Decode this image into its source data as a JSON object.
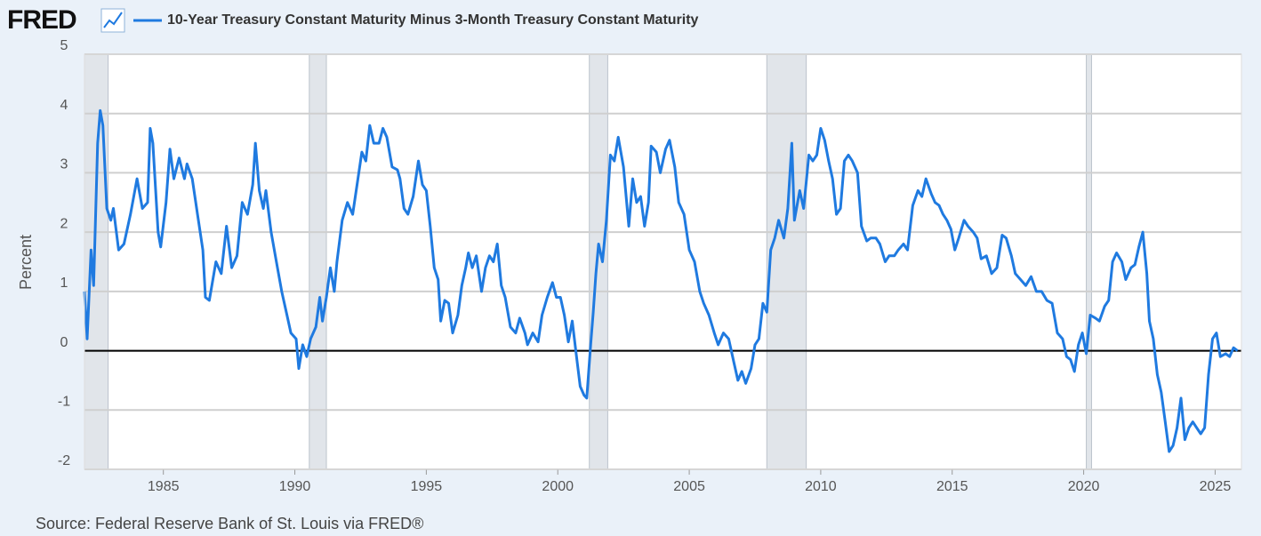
{
  "chart_data": {
    "type": "line",
    "logo": "FRED",
    "y_label": "Percent",
    "source": "Source: Federal Reserve Bank of St. Louis via FRED®",
    "xlim": [
      1982,
      2026
    ],
    "xticks": [
      1985,
      1990,
      1995,
      2000,
      2005,
      2010,
      2015,
      2020,
      2025
    ],
    "ylim": [
      -2,
      5
    ],
    "yticks": [
      -2,
      -1,
      0,
      1,
      2,
      3,
      4,
      5
    ],
    "grid": true,
    "recession_color": "#e1e5ea",
    "recessions": [
      [
        1982,
        1982.9
      ],
      [
        1990.55,
        1991.2
      ],
      [
        2001.2,
        2001.9
      ],
      [
        2007.95,
        2009.45
      ],
      [
        2020.1,
        2020.3
      ]
    ],
    "x": [
      1982.0,
      1982.1,
      1982.25,
      1982.35,
      1982.5,
      1982.6,
      1982.7,
      1982.85,
      1983.0,
      1983.1,
      1983.3,
      1983.5,
      1983.75,
      1984.0,
      1984.2,
      1984.4,
      1984.5,
      1984.6,
      1984.8,
      1984.9,
      1985.1,
      1985.25,
      1985.4,
      1985.6,
      1985.8,
      1985.9,
      1986.1,
      1986.3,
      1986.5,
      1986.6,
      1986.75,
      1987.0,
      1987.2,
      1987.4,
      1987.6,
      1987.8,
      1988.0,
      1988.2,
      1988.4,
      1988.5,
      1988.65,
      1988.8,
      1988.9,
      1989.1,
      1989.3,
      1989.5,
      1989.7,
      1989.85,
      1990.05,
      1990.15,
      1990.3,
      1990.45,
      1990.6,
      1990.8,
      1990.95,
      1991.05,
      1991.2,
      1991.35,
      1991.5,
      1991.6,
      1991.8,
      1992.0,
      1992.2,
      1992.4,
      1992.55,
      1992.7,
      1992.85,
      1993.0,
      1993.2,
      1993.35,
      1993.5,
      1993.7,
      1993.9,
      1994.0,
      1994.15,
      1994.3,
      1994.5,
      1994.7,
      1994.85,
      1995.0,
      1995.15,
      1995.3,
      1995.45,
      1995.55,
      1995.7,
      1995.85,
      1996.0,
      1996.2,
      1996.35,
      1996.5,
      1996.6,
      1996.75,
      1996.9,
      1997.1,
      1997.25,
      1997.4,
      1997.55,
      1997.7,
      1997.85,
      1998.0,
      1998.2,
      1998.4,
      1998.55,
      1998.75,
      1998.85,
      1999.05,
      1999.25,
      1999.4,
      1999.6,
      1999.8,
      1999.95,
      2000.1,
      2000.25,
      2000.4,
      2000.55,
      2000.7,
      2000.85,
      2001.0,
      2001.1,
      2001.25,
      2001.35,
      2001.45,
      2001.55,
      2001.7,
      2001.85,
      2002.0,
      2002.15,
      2002.3,
      2002.5,
      2002.7,
      2002.85,
      2003.0,
      2003.15,
      2003.3,
      2003.45,
      2003.55,
      2003.75,
      2003.9,
      2004.1,
      2004.25,
      2004.45,
      2004.6,
      2004.8,
      2005.0,
      2005.2,
      2005.4,
      2005.55,
      2005.75,
      2005.95,
      2006.1,
      2006.3,
      2006.5,
      2006.7,
      2006.85,
      2007.0,
      2007.15,
      2007.35,
      2007.5,
      2007.65,
      2007.8,
      2007.95,
      2008.1,
      2008.25,
      2008.4,
      2008.6,
      2008.75,
      2008.9,
      2009.0,
      2009.2,
      2009.35,
      2009.55,
      2009.7,
      2009.85,
      2010.0,
      2010.15,
      2010.3,
      2010.45,
      2010.6,
      2010.75,
      2010.9,
      2011.05,
      2011.2,
      2011.4,
      2011.55,
      2011.75,
      2011.9,
      2012.1,
      2012.25,
      2012.45,
      2012.6,
      2012.8,
      2012.95,
      2013.15,
      2013.3,
      2013.5,
      2013.7,
      2013.85,
      2014.0,
      2014.2,
      2014.35,
      2014.5,
      2014.65,
      2014.8,
      2014.95,
      2015.1,
      2015.25,
      2015.45,
      2015.6,
      2015.8,
      2015.95,
      2016.1,
      2016.3,
      2016.5,
      2016.7,
      2016.9,
      2017.05,
      2017.25,
      2017.4,
      2017.6,
      2017.8,
      2018.0,
      2018.2,
      2018.4,
      2018.6,
      2018.8,
      2019.0,
      2019.2,
      2019.35,
      2019.5,
      2019.65,
      2019.8,
      2019.95,
      2020.1,
      2020.25,
      2020.45,
      2020.6,
      2020.8,
      2020.95,
      2021.1,
      2021.25,
      2021.45,
      2021.6,
      2021.8,
      2021.95,
      2022.1,
      2022.25,
      2022.4,
      2022.5,
      2022.65,
      2022.8,
      2022.95,
      2023.1,
      2023.25,
      2023.4,
      2023.55,
      2023.7,
      2023.85,
      2024.0,
      2024.15,
      2024.3,
      2024.45,
      2024.6,
      2024.75,
      2024.9,
      2025.05,
      2025.2,
      2025.4,
      2025.55,
      2025.7,
      2025.85
    ],
    "series": [
      {
        "name": "10-Year Treasury Constant Maturity Minus 3-Month Treasury Constant Maturity",
        "color": "#1f7ae0",
        "values": [
          1.0,
          0.2,
          1.7,
          1.1,
          3.5,
          4.05,
          3.8,
          2.4,
          2.2,
          2.4,
          1.7,
          1.8,
          2.3,
          2.9,
          2.4,
          2.5,
          3.75,
          3.5,
          2.0,
          1.75,
          2.5,
          3.4,
          2.9,
          3.25,
          2.9,
          3.15,
          2.9,
          2.3,
          1.7,
          0.9,
          0.85,
          1.5,
          1.3,
          2.1,
          1.4,
          1.6,
          2.5,
          2.3,
          2.8,
          3.5,
          2.7,
          2.4,
          2.7,
          2.0,
          1.5,
          1.0,
          0.6,
          0.3,
          0.2,
          -0.3,
          0.1,
          -0.1,
          0.2,
          0.4,
          0.9,
          0.5,
          0.9,
          1.4,
          1.0,
          1.5,
          2.2,
          2.5,
          2.3,
          2.9,
          3.35,
          3.2,
          3.8,
          3.5,
          3.5,
          3.75,
          3.6,
          3.1,
          3.05,
          2.9,
          2.4,
          2.3,
          2.6,
          3.2,
          2.8,
          2.7,
          2.1,
          1.4,
          1.2,
          0.5,
          0.85,
          0.8,
          0.3,
          0.6,
          1.1,
          1.4,
          1.65,
          1.4,
          1.6,
          1.0,
          1.4,
          1.6,
          1.5,
          1.8,
          1.1,
          0.9,
          0.4,
          0.3,
          0.55,
          0.3,
          0.1,
          0.3,
          0.15,
          0.6,
          0.9,
          1.15,
          0.9,
          0.9,
          0.6,
          0.15,
          0.5,
          -0.05,
          -0.6,
          -0.75,
          -0.8,
          0.1,
          0.65,
          1.3,
          1.8,
          1.5,
          2.2,
          3.3,
          3.2,
          3.6,
          3.1,
          2.1,
          2.9,
          2.5,
          2.6,
          2.1,
          2.5,
          3.45,
          3.35,
          3.0,
          3.4,
          3.55,
          3.1,
          2.5,
          2.3,
          1.7,
          1.5,
          1.0,
          0.8,
          0.6,
          0.3,
          0.1,
          0.3,
          0.2,
          -0.2,
          -0.5,
          -0.35,
          -0.55,
          -0.3,
          0.1,
          0.2,
          0.8,
          0.65,
          1.7,
          1.9,
          2.2,
          1.9,
          2.4,
          3.5,
          2.2,
          2.7,
          2.4,
          3.3,
          3.2,
          3.3,
          3.75,
          3.55,
          3.2,
          2.9,
          2.3,
          2.4,
          3.2,
          3.3,
          3.2,
          3.0,
          2.1,
          1.85,
          1.9,
          1.9,
          1.8,
          1.5,
          1.6,
          1.6,
          1.7,
          1.8,
          1.7,
          2.45,
          2.7,
          2.6,
          2.9,
          2.65,
          2.5,
          2.45,
          2.3,
          2.2,
          2.05,
          1.7,
          1.9,
          2.2,
          2.1,
          2.0,
          1.9,
          1.55,
          1.6,
          1.3,
          1.4,
          1.95,
          1.9,
          1.6,
          1.3,
          1.2,
          1.1,
          1.25,
          1.0,
          1.0,
          0.85,
          0.8,
          0.3,
          0.2,
          -0.1,
          -0.15,
          -0.35,
          0.1,
          0.3,
          -0.05,
          0.6,
          0.55,
          0.5,
          0.75,
          0.85,
          1.5,
          1.65,
          1.5,
          1.2,
          1.4,
          1.45,
          1.75,
          2.0,
          1.3,
          0.5,
          0.2,
          -0.4,
          -0.7,
          -1.2,
          -1.7,
          -1.6,
          -1.3,
          -0.8,
          -1.5,
          -1.3,
          -1.2,
          -1.3,
          -1.4,
          -1.3,
          -0.4,
          0.2,
          0.3,
          -0.1,
          -0.05,
          -0.1,
          0.05,
          0.0
        ]
      }
    ]
  }
}
